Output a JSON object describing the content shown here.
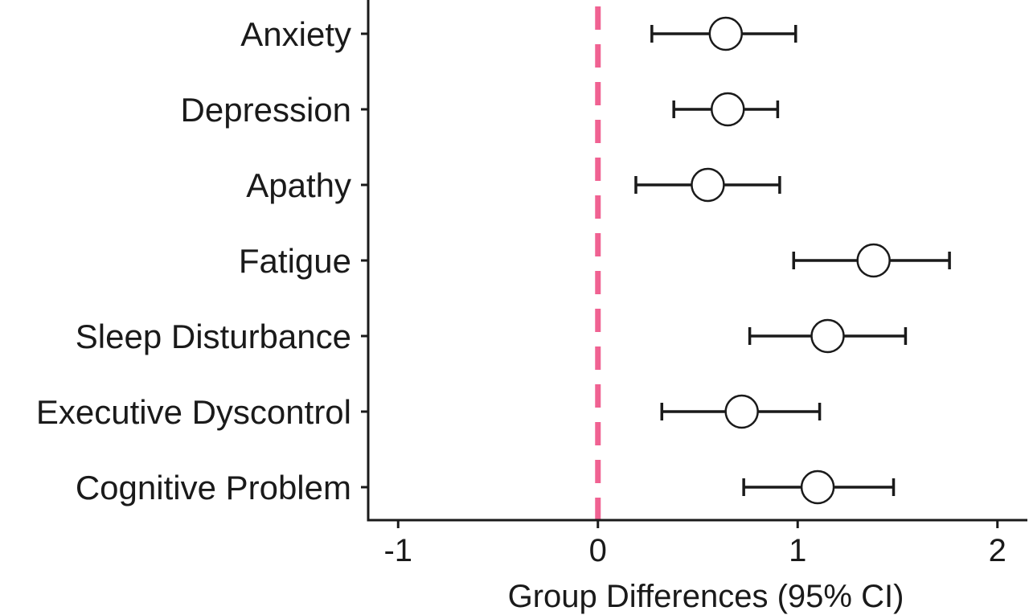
{
  "chart_data": {
    "type": "scatter",
    "subtype": "forest-plot",
    "title": "",
    "xlabel": "Group Differences (95% CI)",
    "ylabel": "",
    "xlim": [
      -1.15,
      2.15
    ],
    "xticks": [
      -1,
      0,
      1,
      2
    ],
    "xtick_labels": [
      "-1",
      "0",
      "1",
      "2"
    ],
    "reference_line": {
      "x": 0,
      "style": "dashed",
      "color": "#f06292"
    },
    "grid": false,
    "legend": "none",
    "categories": [
      "Anxiety",
      "Depression",
      "Apathy",
      "Fatigue",
      "Sleep Disturbance",
      "Executive Dyscontrol",
      "Cognitive Problem"
    ],
    "estimates": [
      0.64,
      0.65,
      0.55,
      1.38,
      1.15,
      0.72,
      1.1
    ],
    "ci_lower": [
      0.27,
      0.38,
      0.19,
      0.98,
      0.76,
      0.32,
      0.73
    ],
    "ci_upper": [
      0.99,
      0.9,
      0.91,
      1.76,
      1.54,
      1.11,
      1.48
    ],
    "colors": {
      "marker": "#1a1a1a",
      "errorbar": "#1a1a1a",
      "axis": "#1a1a1a",
      "reference_line": "#f06292"
    }
  }
}
